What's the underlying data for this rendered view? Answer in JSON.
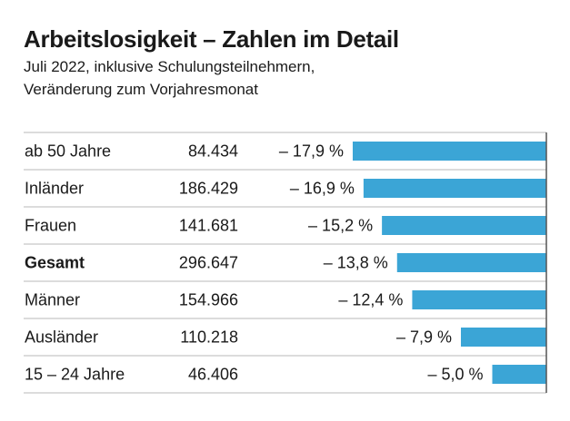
{
  "title": "Arbeitslosigkeit – Zahlen im Detail",
  "subtitle": [
    "Juli 2022, inklusive Schulungsteilnehmern,",
    "Veränderung zum Vorjahresmonat"
  ],
  "colors": {
    "bar": "#3ba5d6",
    "rule": "#d0d0d0",
    "axis": "#555555"
  },
  "chart_data": {
    "type": "bar",
    "orientation": "horizontal",
    "categories": [
      "ab 50 Jahre",
      "Inländer",
      "Frauen",
      "Gesamt",
      "Männer",
      "Ausländer",
      "15 – 24 Jahre"
    ],
    "bold_categories": [
      "Gesamt"
    ],
    "counts": [
      "84.434",
      "186.429",
      "141.681",
      "296.647",
      "154.966",
      "110.218",
      "46.406"
    ],
    "values": [
      -17.9,
      -16.9,
      -15.2,
      -13.8,
      -12.4,
      -7.9,
      -5.0
    ],
    "value_labels": [
      "– 17,9 %",
      "– 16,9 %",
      "– 15,2 %",
      "– 13,8 %",
      "– 12,4 %",
      "– 7,9 %",
      "– 5,0 %"
    ],
    "grid": false
  }
}
